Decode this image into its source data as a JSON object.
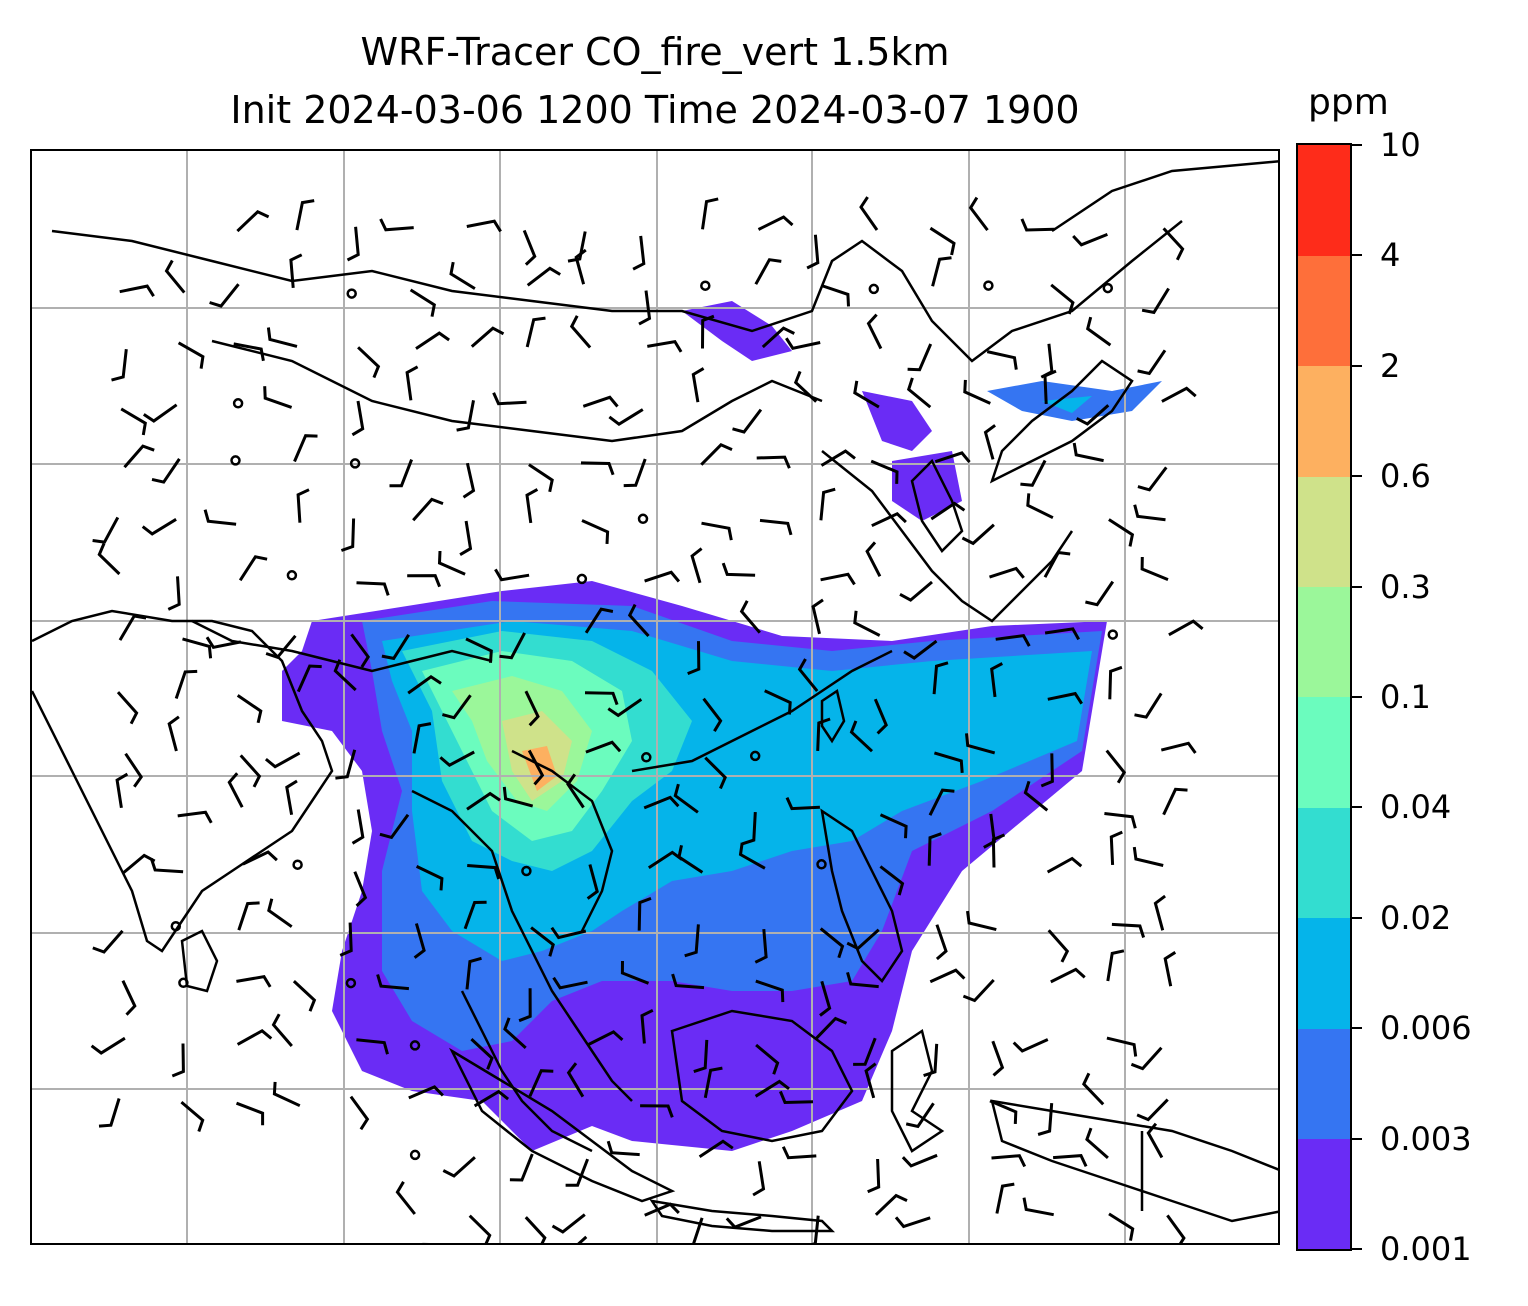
{
  "title": {
    "line1": "WRF-Tracer CO_fire_vert 1.5km",
    "line2": "Init 2024-03-06 1200 Time 2024-03-07 1900"
  },
  "colorbar": {
    "unit": "ppm",
    "levels": [
      "0.001",
      "0.003",
      "0.006",
      "0.02",
      "0.04",
      "0.1",
      "0.3",
      "0.6",
      "2",
      "4",
      "10"
    ],
    "colors": [
      "#6a2cf5",
      "#3575f2",
      "#05b4ea",
      "#33ddd0",
      "#6bfcbe",
      "#9bf79a",
      "#cfe28a",
      "#fdb060",
      "#fe6f3a",
      "#fe2c1a"
    ]
  },
  "map": {
    "land_outline": "#000000",
    "gridline_color": "#b0b0b0",
    "wind_barb_color": "#000000"
  }
}
